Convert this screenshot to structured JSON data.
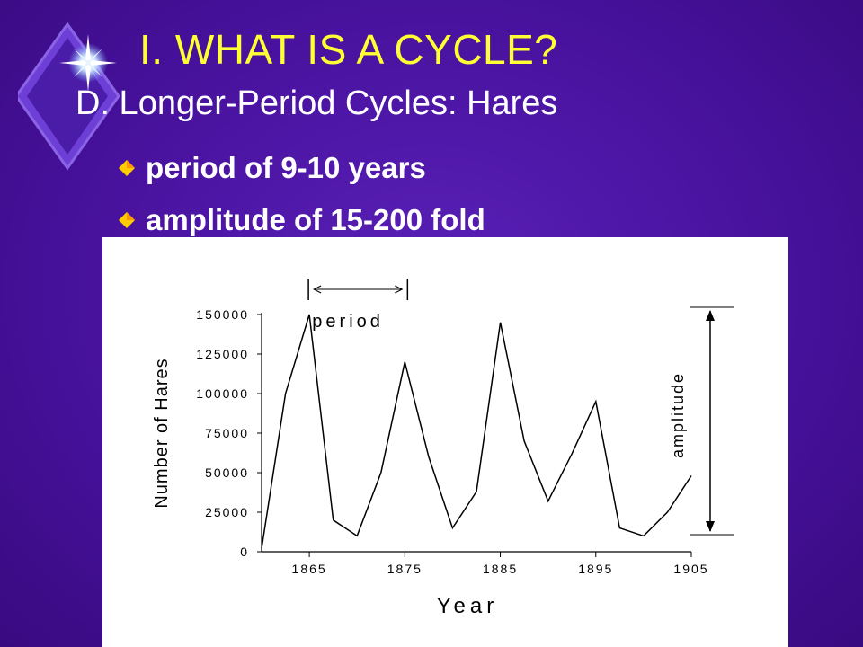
{
  "slide": {
    "title": "I.  WHAT IS A CYCLE?",
    "subtitle": "D.  Longer-Period Cycles:  Hares",
    "bullets": [
      "period of 9-10 years",
      "amplitude of 15-200 fold"
    ]
  },
  "colors": {
    "title": "#ffff33",
    "text": "#ffffff",
    "bullet": "#ffcc00",
    "line": "#000000"
  },
  "chart_data": {
    "type": "line",
    "xlabel": "Year",
    "ylabel": "Number of Hares",
    "xlim": [
      1860,
      1905
    ],
    "ylim": [
      0,
      150000
    ],
    "x_ticks": [
      1865,
      1875,
      1885,
      1895,
      1905
    ],
    "y_ticks": [
      0,
      25000,
      50000,
      75000,
      100000,
      125000,
      150000
    ],
    "x_tick_labels": [
      "1865",
      "1875",
      "1885",
      "1895",
      "1905"
    ],
    "y_tick_labels": [
      "0",
      "25000",
      "50000",
      "75000",
      "100000",
      "125000",
      "150000"
    ],
    "series": [
      {
        "x": [
          1860,
          1862.5,
          1865,
          1867.5,
          1870,
          1872.5,
          1875,
          1877.5,
          1880,
          1882.5,
          1885,
          1887.5,
          1890,
          1892.5,
          1895,
          1897.5,
          1900,
          1902.5,
          1905
        ],
        "y": [
          2000,
          100000,
          150000,
          20000,
          10000,
          50000,
          120000,
          60000,
          15000,
          38000,
          145000,
          70000,
          32000,
          62000,
          95000,
          15000,
          10000,
          25000,
          48000
        ]
      }
    ],
    "annotations": {
      "period": "period",
      "amplitude": "amplitude"
    }
  }
}
